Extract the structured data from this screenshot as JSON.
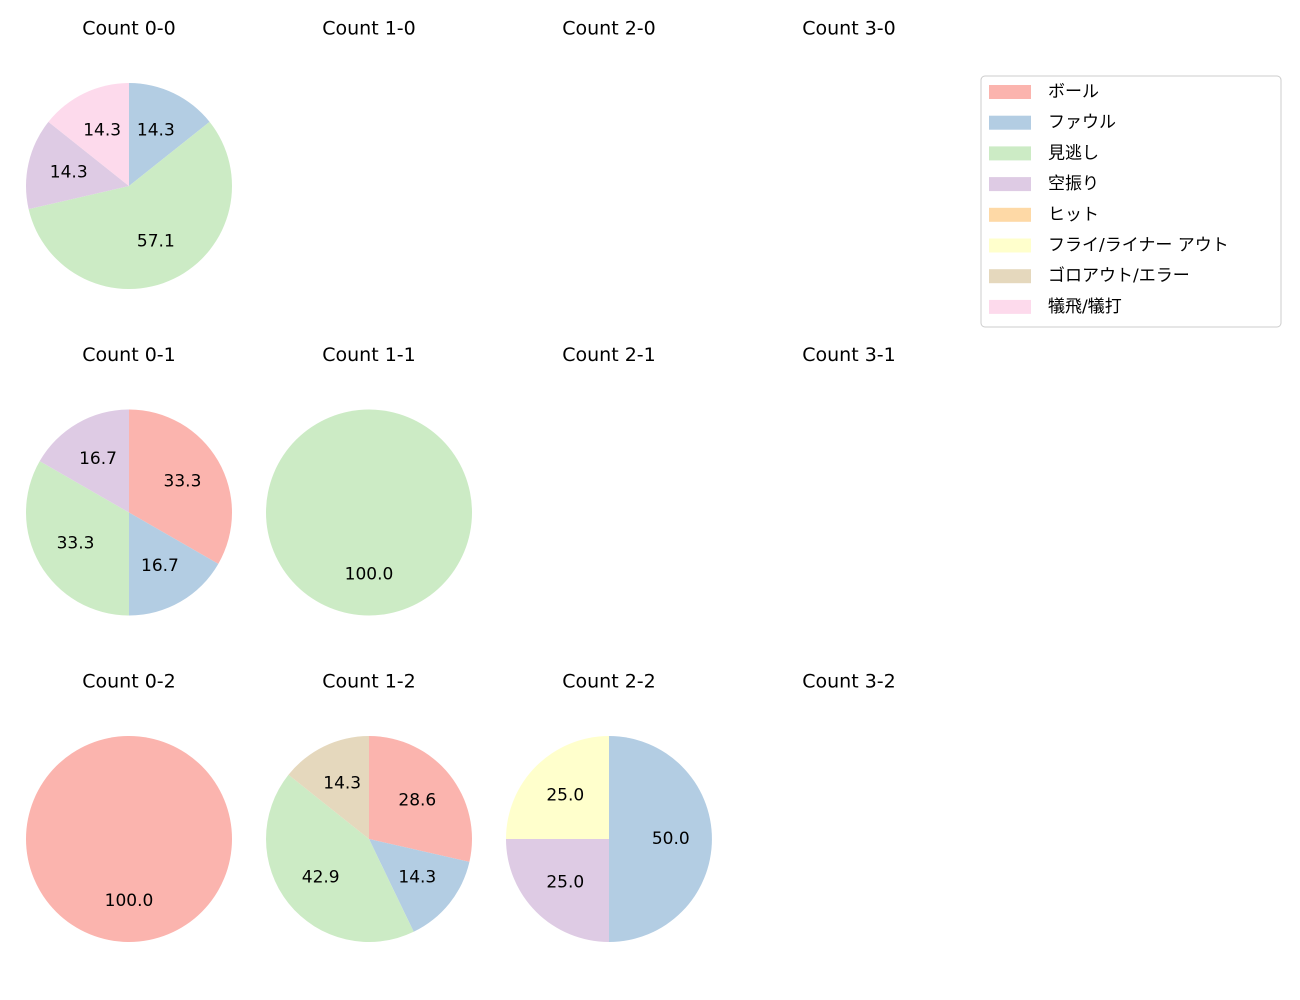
{
  "chart_data": [
    {
      "type": "pie",
      "title": "Count 0-0",
      "categories": [
        "ファウル",
        "見逃し",
        "空振り",
        "犠飛/犠打"
      ],
      "values": [
        14.3,
        57.1,
        14.3,
        14.3
      ],
      "value_labels": [
        "14.3",
        "57.1",
        "14.3",
        "14.3"
      ],
      "colors": [
        "#b3cde3",
        "#ccebc5",
        "#decbe4",
        "#fddaec"
      ]
    },
    {
      "type": "pie",
      "title": "Count 1-0",
      "categories": [],
      "values": [],
      "value_labels": [],
      "colors": []
    },
    {
      "type": "pie",
      "title": "Count 2-0",
      "categories": [],
      "values": [],
      "value_labels": [],
      "colors": []
    },
    {
      "type": "pie",
      "title": "Count 3-0",
      "categories": [],
      "values": [],
      "value_labels": [],
      "colors": []
    },
    {
      "type": "pie",
      "title": "Count 0-1",
      "categories": [
        "ボール",
        "ファウル",
        "見逃し",
        "空振り"
      ],
      "values": [
        33.3,
        16.7,
        33.3,
        16.7
      ],
      "value_labels": [
        "33.3",
        "16.7",
        "33.3",
        "16.7"
      ],
      "colors": [
        "#fbb4ae",
        "#b3cde3",
        "#ccebc5",
        "#decbe4"
      ]
    },
    {
      "type": "pie",
      "title": "Count 1-1",
      "categories": [
        "見逃し"
      ],
      "values": [
        100
      ],
      "value_labels": [
        "100.0"
      ],
      "colors": [
        "#ccebc5"
      ]
    },
    {
      "type": "pie",
      "title": "Count 2-1",
      "categories": [],
      "values": [],
      "value_labels": [],
      "colors": []
    },
    {
      "type": "pie",
      "title": "Count 3-1",
      "categories": [],
      "values": [],
      "value_labels": [],
      "colors": []
    },
    {
      "type": "pie",
      "title": "Count 0-2",
      "categories": [
        "ボール"
      ],
      "values": [
        100
      ],
      "value_labels": [
        "100.0"
      ],
      "colors": [
        "#fbb4ae"
      ]
    },
    {
      "type": "pie",
      "title": "Count 1-2",
      "categories": [
        "ボール",
        "ファウル",
        "見逃し",
        "ゴロアウト/エラー"
      ],
      "values": [
        28.6,
        14.3,
        42.9,
        14.3
      ],
      "value_labels": [
        "28.6",
        "14.3",
        "42.9",
        "14.3"
      ],
      "colors": [
        "#fbb4ae",
        "#b3cde3",
        "#ccebc5",
        "#e5d8bd"
      ]
    },
    {
      "type": "pie",
      "title": "Count 2-2",
      "categories": [
        "ファウル",
        "空振り",
        "フライ/ライナー アウト"
      ],
      "values": [
        50,
        25,
        25
      ],
      "value_labels": [
        "50.0",
        "25.0",
        "25.0"
      ],
      "colors": [
        "#b3cde3",
        "#decbe4",
        "#ffffcc"
      ]
    },
    {
      "type": "pie",
      "title": "Count 3-2",
      "categories": [],
      "values": [],
      "value_labels": [],
      "colors": []
    }
  ],
  "legend": {
    "position": "upper right",
    "items": [
      {
        "name": "ボール",
        "color": "#fbb4ae"
      },
      {
        "name": "ファウル",
        "color": "#b3cde3"
      },
      {
        "name": "見逃し",
        "color": "#ccebc5"
      },
      {
        "name": "空振り",
        "color": "#decbe4"
      },
      {
        "name": "ヒット",
        "color": "#fed9a6"
      },
      {
        "name": "フライ/ライナー アウト",
        "color": "#ffffcc"
      },
      {
        "name": "ゴロアウト/エラー",
        "color": "#e5d8bd"
      },
      {
        "name": "犠飛/犠打",
        "color": "#fddaec"
      }
    ]
  }
}
